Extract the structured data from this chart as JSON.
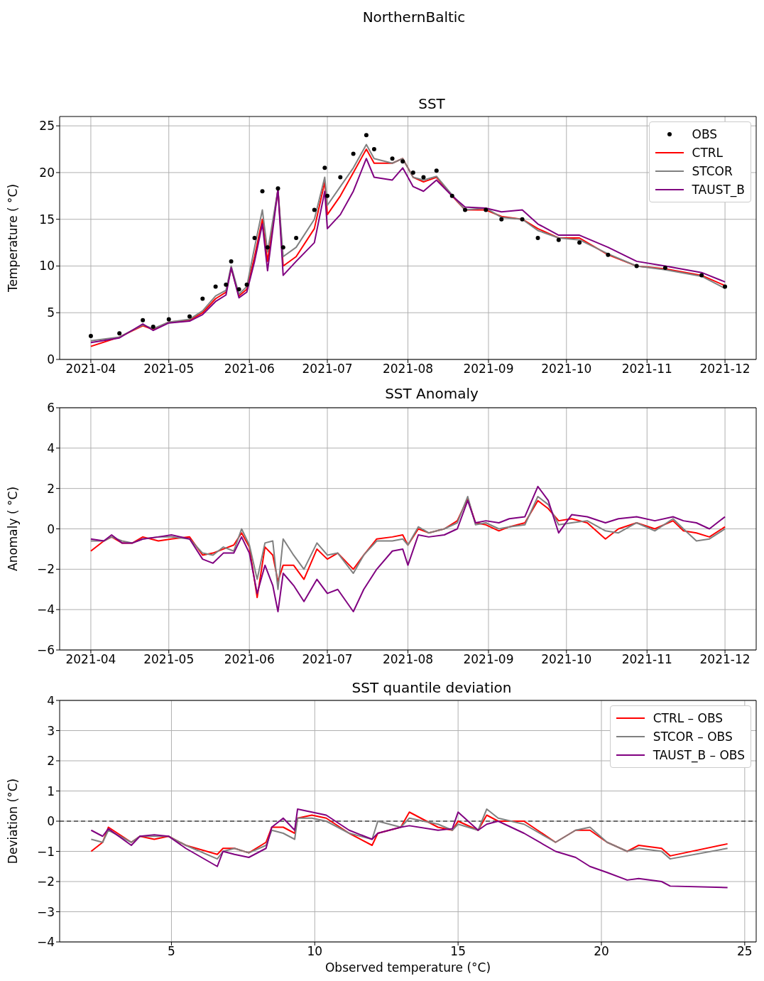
{
  "chart_data": [
    {
      "type": "line",
      "title": "SST",
      "annotations": [
        "NorthernBaltic"
      ],
      "ylabel": "Temperature ( °C)",
      "grid": true,
      "legend": "top right",
      "xlim": [
        "2021-03-20",
        "2021-12-13"
      ],
      "xticks": [
        "2021-04",
        "2021-05",
        "2021-06",
        "2021-07",
        "2021-08",
        "2021-09",
        "2021-10",
        "2021-11",
        "2021-12"
      ],
      "ylim": [
        0,
        26
      ],
      "yticks": [
        0,
        5,
        10,
        15,
        20,
        25
      ],
      "x": [
        "2021-04-01",
        "2021-04-12",
        "2021-04-21",
        "2021-04-25",
        "2021-05-01",
        "2021-05-09",
        "2021-05-14",
        "2021-05-19",
        "2021-05-23",
        "2021-05-25",
        "2021-05-28",
        "2021-05-31",
        "2021-06-03",
        "2021-06-06",
        "2021-06-08",
        "2021-06-12",
        "2021-06-14",
        "2021-06-19",
        "2021-06-26",
        "2021-06-30",
        "2021-07-01",
        "2021-07-06",
        "2021-07-11",
        "2021-07-16",
        "2021-07-19",
        "2021-07-26",
        "2021-07-30",
        "2021-08-03",
        "2021-08-07",
        "2021-08-12",
        "2021-08-18",
        "2021-08-23",
        "2021-08-31",
        "2021-09-06",
        "2021-09-14",
        "2021-09-20",
        "2021-09-28",
        "2021-10-06",
        "2021-10-17",
        "2021-10-28",
        "2021-11-08",
        "2021-11-22",
        "2021-12-01"
      ],
      "series": [
        {
          "name": "OBS",
          "type": "scatter",
          "color": "#000000",
          "values": [
            2.5,
            2.8,
            4.2,
            3.5,
            4.3,
            4.6,
            6.5,
            7.8,
            8,
            10.5,
            7.5,
            8,
            13,
            18,
            12,
            18.3,
            12,
            13,
            16,
            20.5,
            17.5,
            19.5,
            22,
            24,
            22.5,
            21.5,
            21.2,
            20,
            19.5,
            20.2,
            17.5,
            16,
            16,
            15,
            15,
            13,
            12.8,
            12.5,
            11.2,
            10,
            9.8,
            9,
            7.8
          ]
        },
        {
          "name": "CTRL",
          "color": "#ff0000",
          "values": [
            1.4,
            2.4,
            3.6,
            3.2,
            4,
            4.2,
            5,
            6.5,
            7.2,
            9.8,
            6.8,
            7.5,
            11,
            15,
            10.5,
            18.2,
            10,
            11,
            14,
            19,
            15.5,
            17.5,
            20,
            22.5,
            21,
            21,
            21.5,
            19.5,
            19,
            19.5,
            17.5,
            16,
            16.0,
            15.3,
            15,
            14,
            13,
            13,
            11.2,
            10,
            9.7,
            9,
            7.9
          ]
        },
        {
          "name": "STCOR",
          "color": "#808080",
          "values": [
            2.0,
            2.4,
            3.7,
            3.3,
            4,
            4.3,
            5.2,
            6.8,
            7.4,
            10,
            7,
            7.8,
            12,
            16,
            11.5,
            18.2,
            11,
            12,
            15,
            19.5,
            16.5,
            18.5,
            20.5,
            23,
            21.5,
            21,
            21.5,
            19.5,
            19.2,
            19.6,
            17.6,
            16,
            16.2,
            15.2,
            15,
            13.8,
            13,
            12.8,
            11.3,
            10,
            9.6,
            8.9,
            7.6
          ]
        },
        {
          "name": "TAUST_B",
          "color": "#800080",
          "values": [
            1.8,
            2.3,
            3.8,
            3.1,
            3.9,
            4.1,
            4.8,
            6.2,
            6.9,
            9.8,
            6.6,
            7.2,
            10.5,
            14.5,
            9.5,
            18.2,
            9,
            10.5,
            12.5,
            18,
            14,
            15.5,
            18,
            21.5,
            19.5,
            19.2,
            20.5,
            18.5,
            18,
            19.2,
            17.5,
            16.3,
            16.2,
            15.8,
            16,
            14.5,
            13.3,
            13.3,
            12,
            10.5,
            10,
            9.3,
            8.3
          ]
        }
      ]
    },
    {
      "type": "line",
      "title": "SST Anomaly",
      "ylabel": "Anomaly ( °C)",
      "grid": true,
      "xlim": [
        "2021-03-20",
        "2021-12-13"
      ],
      "xticks": [
        "2021-04",
        "2021-05",
        "2021-06",
        "2021-07",
        "2021-08",
        "2021-09",
        "2021-10",
        "2021-11",
        "2021-12"
      ],
      "ylim": [
        -6,
        6
      ],
      "yticks": [
        -6,
        -4,
        -2,
        0,
        2,
        4,
        6
      ],
      "x": [
        "2021-04-01",
        "2021-04-06",
        "2021-04-09",
        "2021-04-13",
        "2021-04-17",
        "2021-04-21",
        "2021-04-27",
        "2021-05-02",
        "2021-05-09",
        "2021-05-14",
        "2021-05-18",
        "2021-05-22",
        "2021-05-26",
        "2021-05-29",
        "2021-06-01",
        "2021-06-04",
        "2021-06-07",
        "2021-06-10",
        "2021-06-12",
        "2021-06-14",
        "2021-06-18",
        "2021-06-22",
        "2021-06-27",
        "2021-07-01",
        "2021-07-05",
        "2021-07-11",
        "2021-07-15",
        "2021-07-20",
        "2021-07-26",
        "2021-07-30",
        "2021-08-01",
        "2021-08-05",
        "2021-08-09",
        "2021-08-15",
        "2021-08-20",
        "2021-08-24",
        "2021-08-27",
        "2021-08-31",
        "2021-09-05",
        "2021-09-09",
        "2021-09-15",
        "2021-09-20",
        "2021-09-24",
        "2021-09-28",
        "2021-10-03",
        "2021-10-09",
        "2021-10-16",
        "2021-10-21",
        "2021-10-28",
        "2021-11-04",
        "2021-11-11",
        "2021-11-15",
        "2021-11-20",
        "2021-11-25",
        "2021-12-01"
      ],
      "series": [
        {
          "color": "#ff0000",
          "values": [
            -1.1,
            -0.6,
            -0.4,
            -0.7,
            -0.7,
            -0.4,
            -0.6,
            -0.5,
            -0.4,
            -1.3,
            -1.2,
            -1.0,
            -0.8,
            -0.2,
            -0.9,
            -3.4,
            -0.9,
            -1.3,
            -2.6,
            -1.8,
            -1.8,
            -2.5,
            -1.0,
            -1.5,
            -1.2,
            -2.0,
            -1.3,
            -0.5,
            -0.4,
            -0.3,
            -0.8,
            0.0,
            -0.2,
            0.0,
            0.4,
            1.5,
            0.3,
            0.2,
            -0.1,
            0.1,
            0.3,
            1.4,
            1.0,
            0.4,
            0.5,
            0.3,
            -0.5,
            0.0,
            0.3,
            0.0,
            0.4,
            -0.1,
            -0.2,
            -0.4,
            0.1
          ]
        },
        {
          "color": "#808080",
          "values": [
            -0.6,
            -0.6,
            -0.4,
            -0.6,
            -0.7,
            -0.5,
            -0.4,
            -0.4,
            -0.5,
            -1.2,
            -1.3,
            -0.9,
            -1.1,
            0.0,
            -0.8,
            -2.5,
            -0.7,
            -0.6,
            -3.0,
            -0.5,
            -1.3,
            -2.0,
            -0.7,
            -1.3,
            -1.2,
            -2.2,
            -1.3,
            -0.6,
            -0.6,
            -0.5,
            -0.8,
            0.1,
            -0.2,
            0.0,
            0.3,
            1.6,
            0.2,
            0.3,
            0.0,
            0.1,
            0.2,
            1.6,
            1.2,
            0.2,
            0.3,
            0.4,
            -0.1,
            -0.2,
            0.3,
            -0.1,
            0.5,
            0.0,
            -0.6,
            -0.5,
            0.0
          ]
        },
        {
          "color": "#800080",
          "values": [
            -0.5,
            -0.6,
            -0.3,
            -0.7,
            -0.7,
            -0.5,
            -0.4,
            -0.3,
            -0.5,
            -1.5,
            -1.7,
            -1.2,
            -1.2,
            -0.4,
            -1.2,
            -3.2,
            -1.8,
            -2.8,
            -4.1,
            -2.2,
            -2.8,
            -3.6,
            -2.5,
            -3.2,
            -3.0,
            -4.1,
            -3.0,
            -2.0,
            -1.1,
            -1.0,
            -1.8,
            -0.3,
            -0.4,
            -0.3,
            0.0,
            1.4,
            0.3,
            0.4,
            0.3,
            0.5,
            0.6,
            2.1,
            1.4,
            -0.2,
            0.7,
            0.6,
            0.3,
            0.5,
            0.6,
            0.4,
            0.6,
            0.4,
            0.3,
            0.0,
            0.6
          ]
        }
      ]
    },
    {
      "type": "line",
      "title": "SST quantile deviation",
      "xlabel": "Observed temperature (°C)",
      "ylabel": "Deviation (°C)",
      "grid": true,
      "legend": "top right",
      "xlim": [
        1.1,
        25.4
      ],
      "xticks": [
        5,
        10,
        15,
        20,
        25
      ],
      "ylim": [
        -4,
        4
      ],
      "yticks": [
        -4,
        -3,
        -2,
        -1,
        0,
        1,
        2,
        3,
        4
      ],
      "ref_lines": [
        {
          "axis": "y",
          "value": 0,
          "color": "#000000",
          "line_style": "dashed"
        }
      ],
      "x": [
        2.2,
        2.6,
        2.8,
        3.6,
        3.9,
        4.4,
        4.9,
        5.5,
        6.6,
        6.8,
        7.2,
        7.7,
        8.3,
        8.5,
        8.9,
        9.3,
        9.4,
        9.9,
        10.4,
        11.2,
        12.0,
        12.2,
        13.0,
        13.3,
        14.3,
        14.8,
        15.0,
        15.7,
        16.0,
        16.4,
        17.3,
        18.4,
        19.1,
        19.6,
        20.2,
        20.9,
        21.3,
        22.1,
        22.4,
        24.4
      ],
      "series": [
        {
          "name": "CTRL – OBS",
          "color": "#ff0000",
          "values": [
            -1.0,
            -0.7,
            -0.2,
            -0.7,
            -0.5,
            -0.6,
            -0.5,
            -0.8,
            -1.1,
            -0.9,
            -0.9,
            -1.05,
            -0.7,
            -0.2,
            -0.2,
            -0.4,
            0.1,
            0.2,
            0.1,
            -0.4,
            -0.8,
            -0.4,
            -0.2,
            0.3,
            -0.2,
            -0.3,
            0.0,
            -0.3,
            0.2,
            0.0,
            0.0,
            -0.7,
            -0.3,
            -0.3,
            -0.7,
            -1.0,
            -0.8,
            -0.9,
            -1.15,
            -0.75
          ]
        },
        {
          "name": "STCOR – OBS",
          "color": "#808080",
          "values": [
            -0.6,
            -0.7,
            -0.3,
            -0.7,
            -0.5,
            -0.5,
            -0.5,
            -0.8,
            -1.25,
            -1.0,
            -0.9,
            -1.05,
            -0.8,
            -0.3,
            -0.4,
            -0.6,
            0.1,
            0.1,
            0.0,
            -0.4,
            -0.6,
            0.0,
            -0.2,
            0.1,
            -0.1,
            -0.3,
            -0.1,
            -0.3,
            0.4,
            0.1,
            -0.1,
            -0.7,
            -0.3,
            -0.2,
            -0.7,
            -1.0,
            -0.9,
            -1.0,
            -1.25,
            -0.9
          ]
        },
        {
          "name": "TAUST_B – OBS",
          "color": "#800080",
          "values": [
            -0.3,
            -0.5,
            -0.25,
            -0.8,
            -0.5,
            -0.45,
            -0.5,
            -0.9,
            -1.5,
            -1.0,
            -1.1,
            -1.2,
            -0.9,
            -0.2,
            0.1,
            -0.3,
            0.4,
            0.3,
            0.2,
            -0.3,
            -0.6,
            -0.4,
            -0.2,
            -0.15,
            -0.3,
            -0.25,
            0.3,
            -0.3,
            -0.1,
            0.0,
            -0.4,
            -1.0,
            -1.2,
            -1.5,
            -1.7,
            -1.95,
            -1.9,
            -2.0,
            -2.15,
            -2.2
          ]
        }
      ]
    }
  ]
}
